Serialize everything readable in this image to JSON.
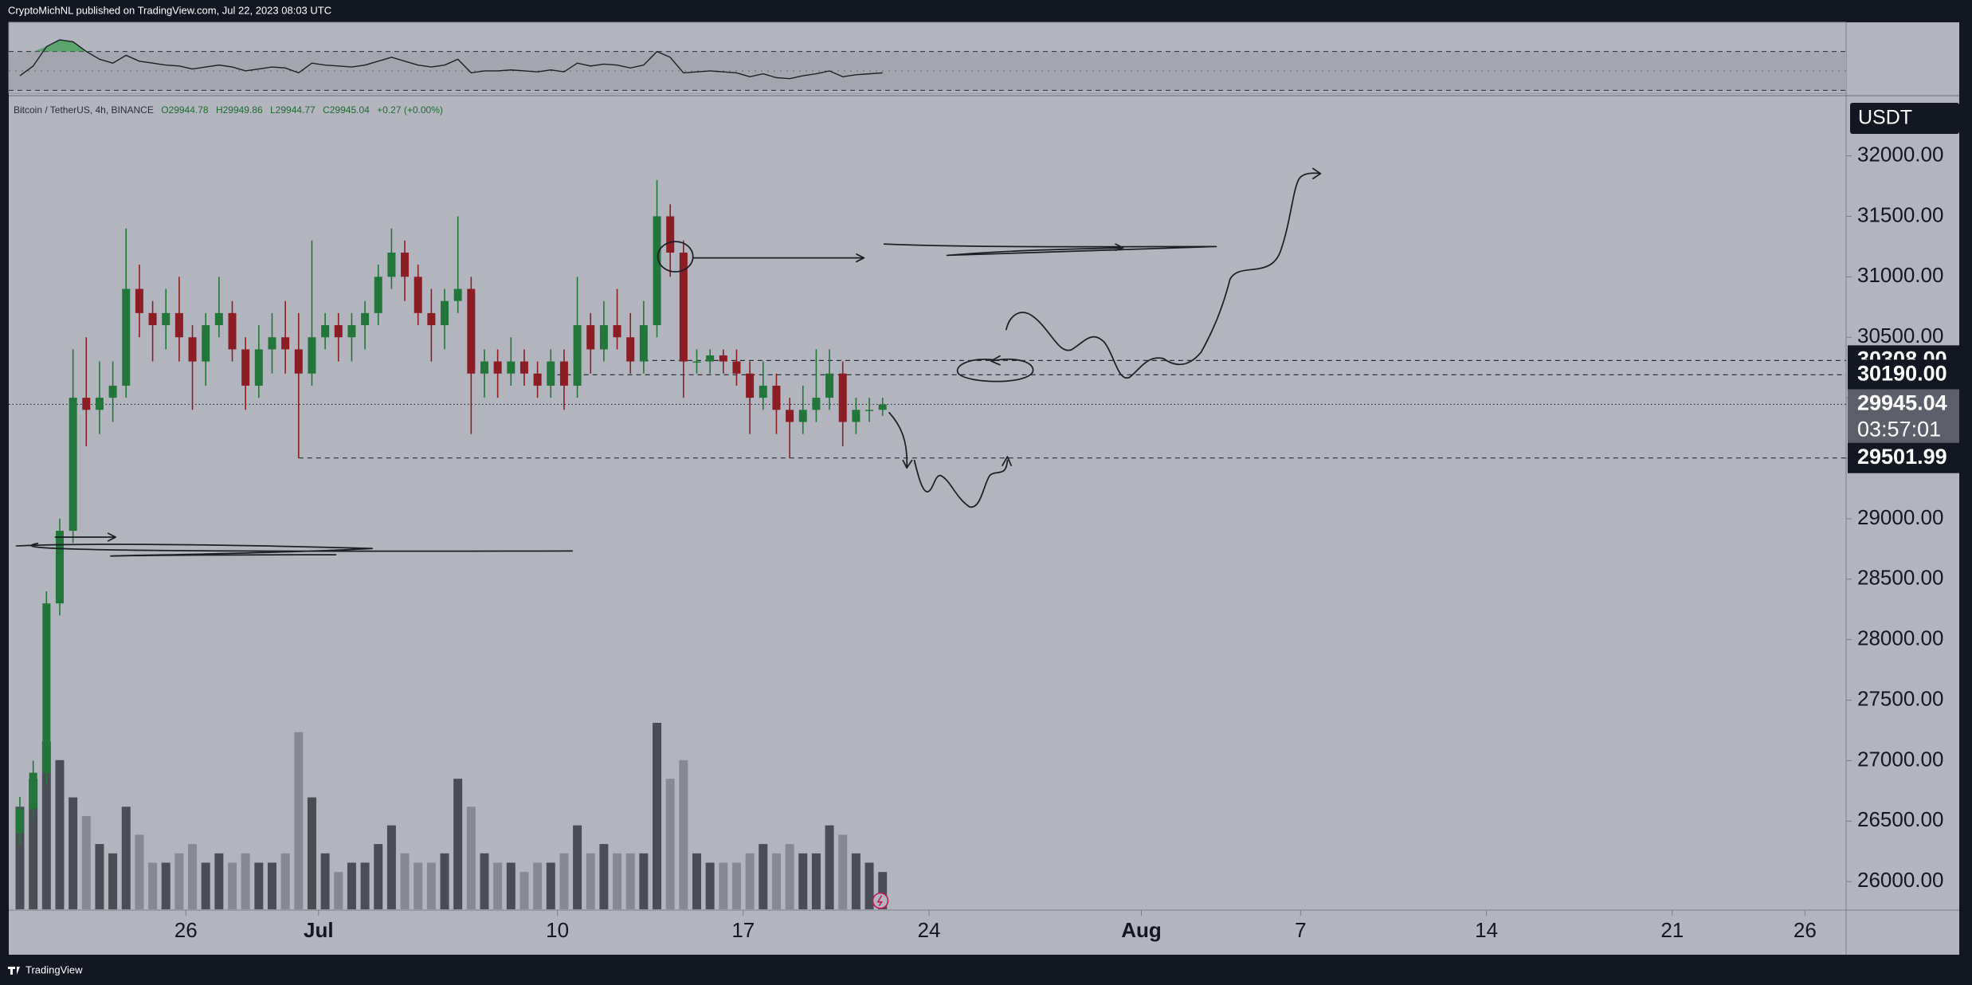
{
  "header": {
    "text": "CryptoMichNL published on TradingView.com, Jul 22, 2023 08:03 UTC"
  },
  "footer": {
    "brand": "TradingView"
  },
  "chart_data": {
    "type": "candlestick",
    "symbol": "Bitcoin / TetherUS, 4h, BINANCE",
    "ohlc_legend": [
      {
        "value": 29944.78,
        "label": "O29944.78"
      },
      {
        "value": 29949.86,
        "label": "H29949.86"
      },
      {
        "value": 29944.77,
        "label": "L29944.77"
      },
      {
        "value": 29945.04,
        "label": "C29945.04"
      }
    ],
    "change": "+0.27 (+0.00%)",
    "currency": "USDT",
    "up_color": "#23763a",
    "down_color": "#8d1d25",
    "volume_up_color": "#4a4d55",
    "volume_down_color": "#868992",
    "open": [
      26400,
      26600,
      26900,
      28300,
      28900,
      30000,
      29900,
      30000,
      30100,
      30900,
      30700,
      30600,
      30700,
      30500,
      30300,
      30600,
      30700,
      30400,
      30100,
      30400,
      30500,
      30400,
      30200,
      30500,
      30600,
      30500,
      30600,
      30700,
      31000,
      31200,
      31000,
      30700,
      30600,
      30800,
      30900,
      30200,
      30300,
      30200,
      30300,
      30200,
      30100,
      30300,
      30100,
      30600,
      30400,
      30600,
      30500,
      30300,
      30600,
      31500,
      31200,
      30300,
      30300,
      30350,
      30300,
      30200,
      30000,
      30100,
      29900,
      29800,
      29900,
      30000,
      30200,
      29800,
      29900,
      29900
    ],
    "high": [
      26700,
      27000,
      28400,
      29000,
      30400,
      30500,
      30300,
      30300,
      31400,
      31100,
      30800,
      30900,
      31000,
      30600,
      30700,
      31000,
      30800,
      30500,
      30600,
      30700,
      30800,
      30700,
      31300,
      30700,
      30700,
      30700,
      30800,
      31100,
      31400,
      31300,
      31100,
      30900,
      30900,
      31500,
      31000,
      30400,
      30400,
      30500,
      30400,
      30300,
      30400,
      30400,
      31000,
      30700,
      30800,
      30900,
      30700,
      30800,
      31800,
      31600,
      31300,
      30400,
      30400,
      30400,
      30400,
      30300,
      30300,
      30200,
      30000,
      30100,
      30400,
      30400,
      30300,
      30000,
      30000,
      30000
    ],
    "low": [
      26300,
      26500,
      26800,
      28200,
      28800,
      29600,
      29700,
      29800,
      30000,
      30500,
      30300,
      30400,
      30300,
      29900,
      30100,
      30500,
      30300,
      29900,
      30000,
      30200,
      30200,
      29500,
      30100,
      30400,
      30300,
      30300,
      30400,
      30600,
      30900,
      30800,
      30600,
      30300,
      30400,
      30700,
      29700,
      30000,
      30000,
      30100,
      30100,
      30000,
      30000,
      29900,
      30000,
      30200,
      30300,
      30400,
      30200,
      30200,
      30500,
      31000,
      30000,
      30200,
      30200,
      30200,
      30100,
      29700,
      29900,
      29700,
      29500,
      29700,
      29800,
      29900,
      29600,
      29700,
      29800,
      29850
    ],
    "close": [
      26600,
      26900,
      28300,
      28900,
      30000,
      29900,
      30000,
      30100,
      30900,
      30700,
      30600,
      30700,
      30500,
      30300,
      30600,
      30700,
      30400,
      30100,
      30400,
      30500,
      30400,
      30200,
      30500,
      30600,
      30500,
      30600,
      30700,
      31000,
      31200,
      31000,
      30700,
      30600,
      30800,
      30900,
      30200,
      30300,
      30200,
      30300,
      30200,
      30100,
      30300,
      30100,
      30600,
      30400,
      30600,
      30500,
      30300,
      30600,
      31500,
      31200,
      30300,
      30300,
      30350,
      30300,
      30200,
      30000,
      30100,
      29900,
      29800,
      29900,
      30000,
      30200,
      29800,
      29900,
      29900,
      29945.04
    ],
    "volume": [
      55,
      70,
      90,
      80,
      60,
      50,
      35,
      30,
      55,
      40,
      25,
      25,
      30,
      35,
      25,
      30,
      25,
      30,
      25,
      25,
      30,
      95,
      60,
      30,
      20,
      25,
      25,
      35,
      45,
      30,
      25,
      25,
      30,
      70,
      55,
      30,
      25,
      25,
      20,
      25,
      25,
      30,
      45,
      30,
      35,
      30,
      30,
      30,
      100,
      70,
      80,
      30,
      25,
      25,
      25,
      30,
      35,
      30,
      35,
      30,
      30,
      45,
      40,
      30,
      25,
      20
    ],
    "indicator": {
      "values": [
        45,
        55,
        75,
        82,
        80,
        70,
        62,
        58,
        66,
        60,
        58,
        56,
        55,
        52,
        54,
        56,
        54,
        50,
        52,
        54,
        53,
        48,
        58,
        56,
        55,
        54,
        56,
        60,
        64,
        60,
        56,
        54,
        56,
        62,
        48,
        50,
        50,
        51,
        50,
        49,
        51,
        49,
        58,
        55,
        57,
        56,
        53,
        56,
        70,
        64,
        48,
        49,
        50,
        49,
        48,
        44,
        47,
        43,
        42,
        45,
        47,
        50,
        44,
        46,
        47,
        48
      ],
      "ylim": [
        27,
        100
      ],
      "levels": [
        70,
        50,
        30
      ],
      "color": "#1c1f26",
      "overbought_fill": "#3f9c52"
    },
    "xlim": [
      -0.84,
      137.6
    ],
    "xticks": [
      {
        "value": 12.5,
        "label": "26"
      },
      {
        "value": 22.5,
        "label": "Jul"
      },
      {
        "value": 40.5,
        "label": "10"
      },
      {
        "value": 54.5,
        "label": "17"
      },
      {
        "value": 68.5,
        "label": "24"
      },
      {
        "value": 84.5,
        "label": "Aug"
      },
      {
        "value": 96.5,
        "label": "7"
      },
      {
        "value": 110.5,
        "label": "14"
      },
      {
        "value": 124.5,
        "label": "21"
      },
      {
        "value": 134.5,
        "label": "26"
      }
    ],
    "ylim": [
      25771,
      32478
    ],
    "yticks": [
      {
        "value": 26000,
        "label": "26000.00"
      },
      {
        "value": 26500,
        "label": "26500.00"
      },
      {
        "value": 27000,
        "label": "27000.00"
      },
      {
        "value": 27500,
        "label": "27500.00"
      },
      {
        "value": 28000,
        "label": "28000.00"
      },
      {
        "value": 28500,
        "label": "28500.00"
      },
      {
        "value": 29000,
        "label": "29000.00"
      },
      {
        "value": 29500,
        "label": "29500.00"
      },
      {
        "value": 30000,
        "label": "30000.00"
      },
      {
        "value": 30500,
        "label": "30500.00"
      },
      {
        "value": 31000,
        "label": "31000.00"
      },
      {
        "value": 31500,
        "label": "31500.00"
      },
      {
        "value": 32000,
        "label": "32000.00"
      }
    ],
    "price_labels": [
      {
        "value": 30308,
        "label": "30308.00",
        "color": "#131722",
        "line": "dashed"
      },
      {
        "value": 30190,
        "label": "30190.00",
        "color": "#131722",
        "line": "dashed"
      },
      {
        "value": 29945.04,
        "label": "29945.04",
        "countdown": "03:57:01",
        "color": "#5d606b",
        "line": "dotted"
      },
      {
        "value": 29501.99,
        "label": "29501.99",
        "color": "#131722",
        "line": "dashed"
      }
    ]
  }
}
